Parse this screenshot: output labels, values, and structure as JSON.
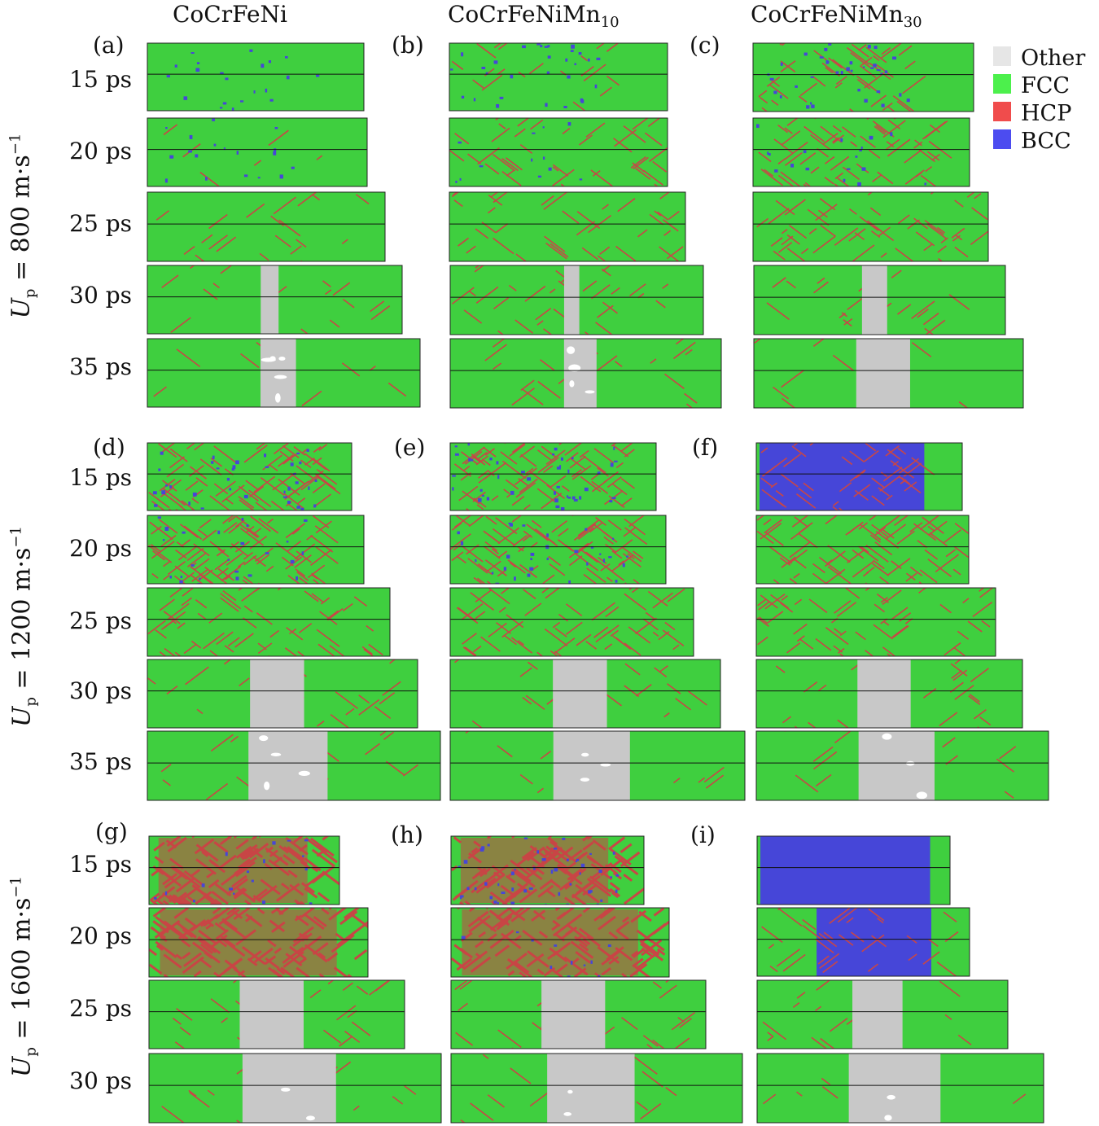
{
  "columns": {
    "c1": "CoCrFeNi",
    "c2_base": "CoCrFeNiMn",
    "c2_sub": "10",
    "c3_base": "CoCrFeNiMn",
    "c3_sub": "30"
  },
  "panel_labels": [
    "(a)",
    "(b)",
    "(c)",
    "(d)",
    "(e)",
    "(f)",
    "(g)",
    "(h)",
    "(i)"
  ],
  "rows": [
    {
      "var": "U",
      "sub": "p",
      "eq": " = 800 m·s",
      "sup": "−1",
      "times": [
        "15 ps",
        "20 ps",
        "25 ps",
        "30 ps",
        "35 ps"
      ]
    },
    {
      "var": "U",
      "sub": "p",
      "eq": " = 1200 m·s",
      "sup": "−1",
      "times": [
        "15 ps",
        "20 ps",
        "25 ps",
        "30 ps",
        "35 ps"
      ]
    },
    {
      "var": "U",
      "sub": "p",
      "eq": " = 1600 m·s",
      "sup": "−1",
      "times": [
        "15 ps",
        "20 ps",
        "25 ps",
        "30 ps"
      ]
    }
  ],
  "legend": [
    {
      "label": "Other",
      "color": "#e6e6e6"
    },
    {
      "label": "FCC",
      "color": "#4cf04c"
    },
    {
      "label": "HCP",
      "color": "#f04c4c"
    },
    {
      "label": "BCC",
      "color": "#4c4cf0"
    }
  ],
  "colors": {
    "fcc": "#3fcf3f",
    "hcp": "#c84646",
    "bcc": "#4646d8",
    "other": "#c8c8c8",
    "void": "#ffffff"
  }
}
